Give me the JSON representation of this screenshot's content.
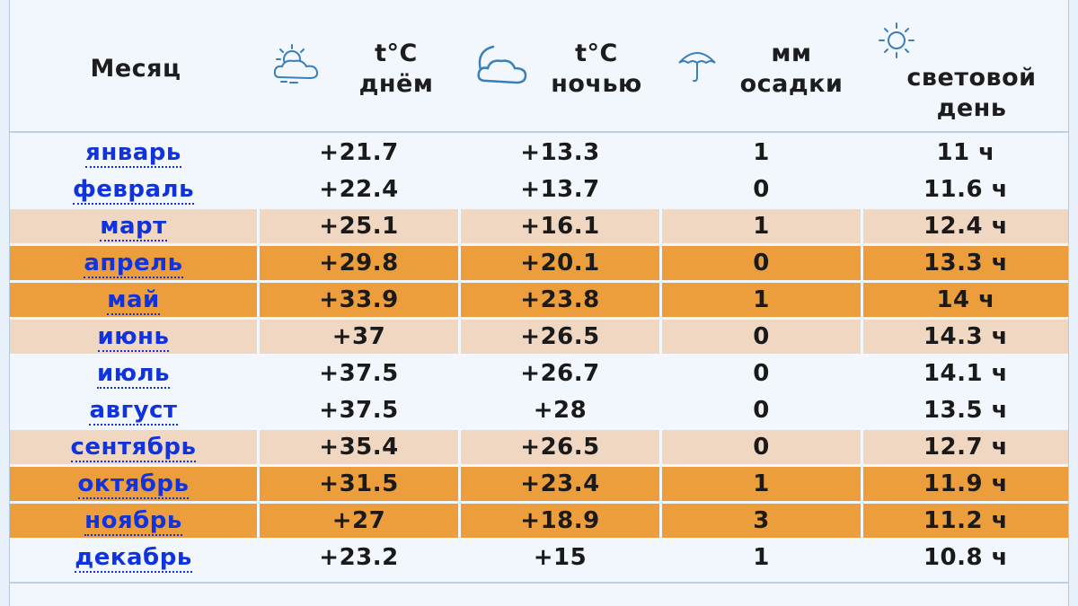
{
  "header": {
    "month": "Месяц",
    "day_temp": [
      "t°C",
      "днём"
    ],
    "night_temp": [
      "t°C",
      "ночью"
    ],
    "precip": [
      "мм",
      "осадки"
    ],
    "daylight": [
      "световой",
      "день"
    ]
  },
  "icons": {
    "day": "sun-behind-cloud-icon",
    "night": "moon-cloud-icon",
    "precip": "umbrella-icon",
    "daylight": "sun-icon"
  },
  "colors": {
    "link": "#1133dd",
    "warm_row": "#f0d7c2",
    "hot_row": "#ec9e3c",
    "icon": "#3b7fb8"
  },
  "rows": [
    {
      "month": "январь",
      "day": "+21.7",
      "night": "+13.3",
      "precip": "1",
      "daylight": "11 ч",
      "style": "normal"
    },
    {
      "month": "февраль",
      "day": "+22.4",
      "night": "+13.7",
      "precip": "0",
      "daylight": "11.6 ч",
      "style": "normal"
    },
    {
      "month": "март",
      "day": "+25.1",
      "night": "+16.1",
      "precip": "1",
      "daylight": "12.4 ч",
      "style": "warm"
    },
    {
      "month": "апрель",
      "day": "+29.8",
      "night": "+20.1",
      "precip": "0",
      "daylight": "13.3 ч",
      "style": "hot"
    },
    {
      "month": "май",
      "day": "+33.9",
      "night": "+23.8",
      "precip": "1",
      "daylight": "14 ч",
      "style": "hot"
    },
    {
      "month": "июнь",
      "day": "+37",
      "night": "+26.5",
      "precip": "0",
      "daylight": "14.3 ч",
      "style": "warm"
    },
    {
      "month": "июль",
      "day": "+37.5",
      "night": "+26.7",
      "precip": "0",
      "daylight": "14.1 ч",
      "style": "normal"
    },
    {
      "month": "август",
      "day": "+37.5",
      "night": "+28",
      "precip": "0",
      "daylight": "13.5 ч",
      "style": "normal"
    },
    {
      "month": "сентябрь",
      "day": "+35.4",
      "night": "+26.5",
      "precip": "0",
      "daylight": "12.7 ч",
      "style": "warm"
    },
    {
      "month": "октябрь",
      "day": "+31.5",
      "night": "+23.4",
      "precip": "1",
      "daylight": "11.9 ч",
      "style": "hot"
    },
    {
      "month": "ноябрь",
      "day": "+27",
      "night": "+18.9",
      "precip": "3",
      "daylight": "11.2 ч",
      "style": "hot"
    },
    {
      "month": "декабрь",
      "day": "+23.2",
      "night": "+15",
      "precip": "1",
      "daylight": "10.8 ч",
      "style": "normal"
    }
  ]
}
